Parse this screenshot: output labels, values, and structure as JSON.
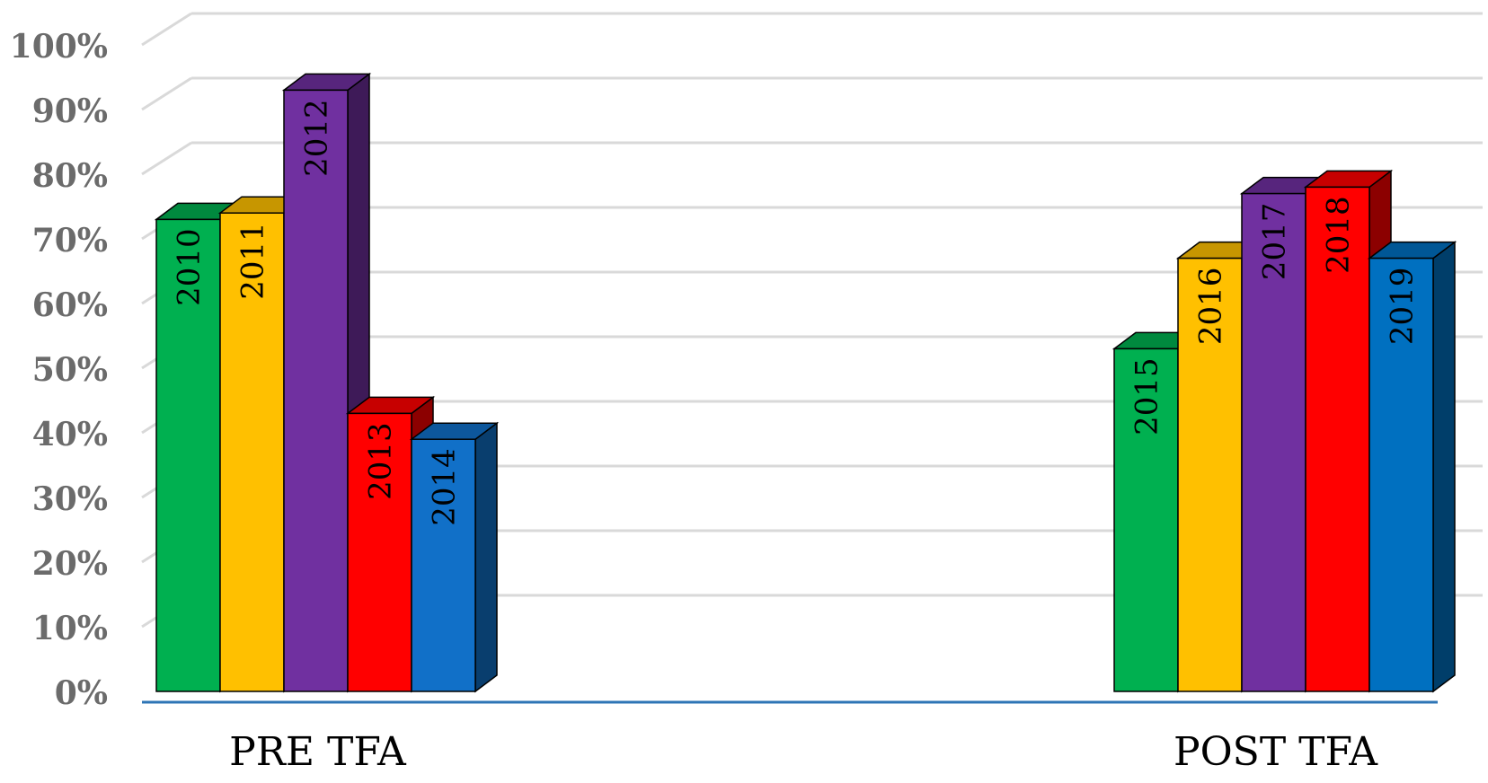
{
  "chart_data": {
    "type": "bar",
    "title": "",
    "xlabel": "",
    "ylabel": "",
    "ylim": [
      0,
      100
    ],
    "y_ticks": [
      "0%",
      "10%",
      "20%",
      "30%",
      "40%",
      "50%",
      "60%",
      "70%",
      "80%",
      "90%",
      "100%"
    ],
    "grid": true,
    "style": "3d-clustered-column",
    "categories": [
      "PRE TFA",
      "POST TFA"
    ],
    "groups": [
      {
        "category": "PRE TFA",
        "bars": [
          {
            "label": "2010",
            "value": 73,
            "color": "#00b050"
          },
          {
            "label": "2011",
            "value": 74,
            "color": "#ffc000"
          },
          {
            "label": "2012",
            "value": 93,
            "color": "#7030a0"
          },
          {
            "label": "2013",
            "value": 43,
            "color": "#ff0000"
          },
          {
            "label": "2014",
            "value": 39,
            "color": "#1170c8"
          }
        ]
      },
      {
        "category": "POST TFA",
        "bars": [
          {
            "label": "2015",
            "value": 53,
            "color": "#00b050"
          },
          {
            "label": "2016",
            "value": 67,
            "color": "#ffc000"
          },
          {
            "label": "2017",
            "value": 77,
            "color": "#7030a0"
          },
          {
            "label": "2018",
            "value": 78,
            "color": "#ff0000"
          },
          {
            "label": "2019",
            "value": 67,
            "color": "#0070c0"
          }
        ]
      }
    ]
  }
}
